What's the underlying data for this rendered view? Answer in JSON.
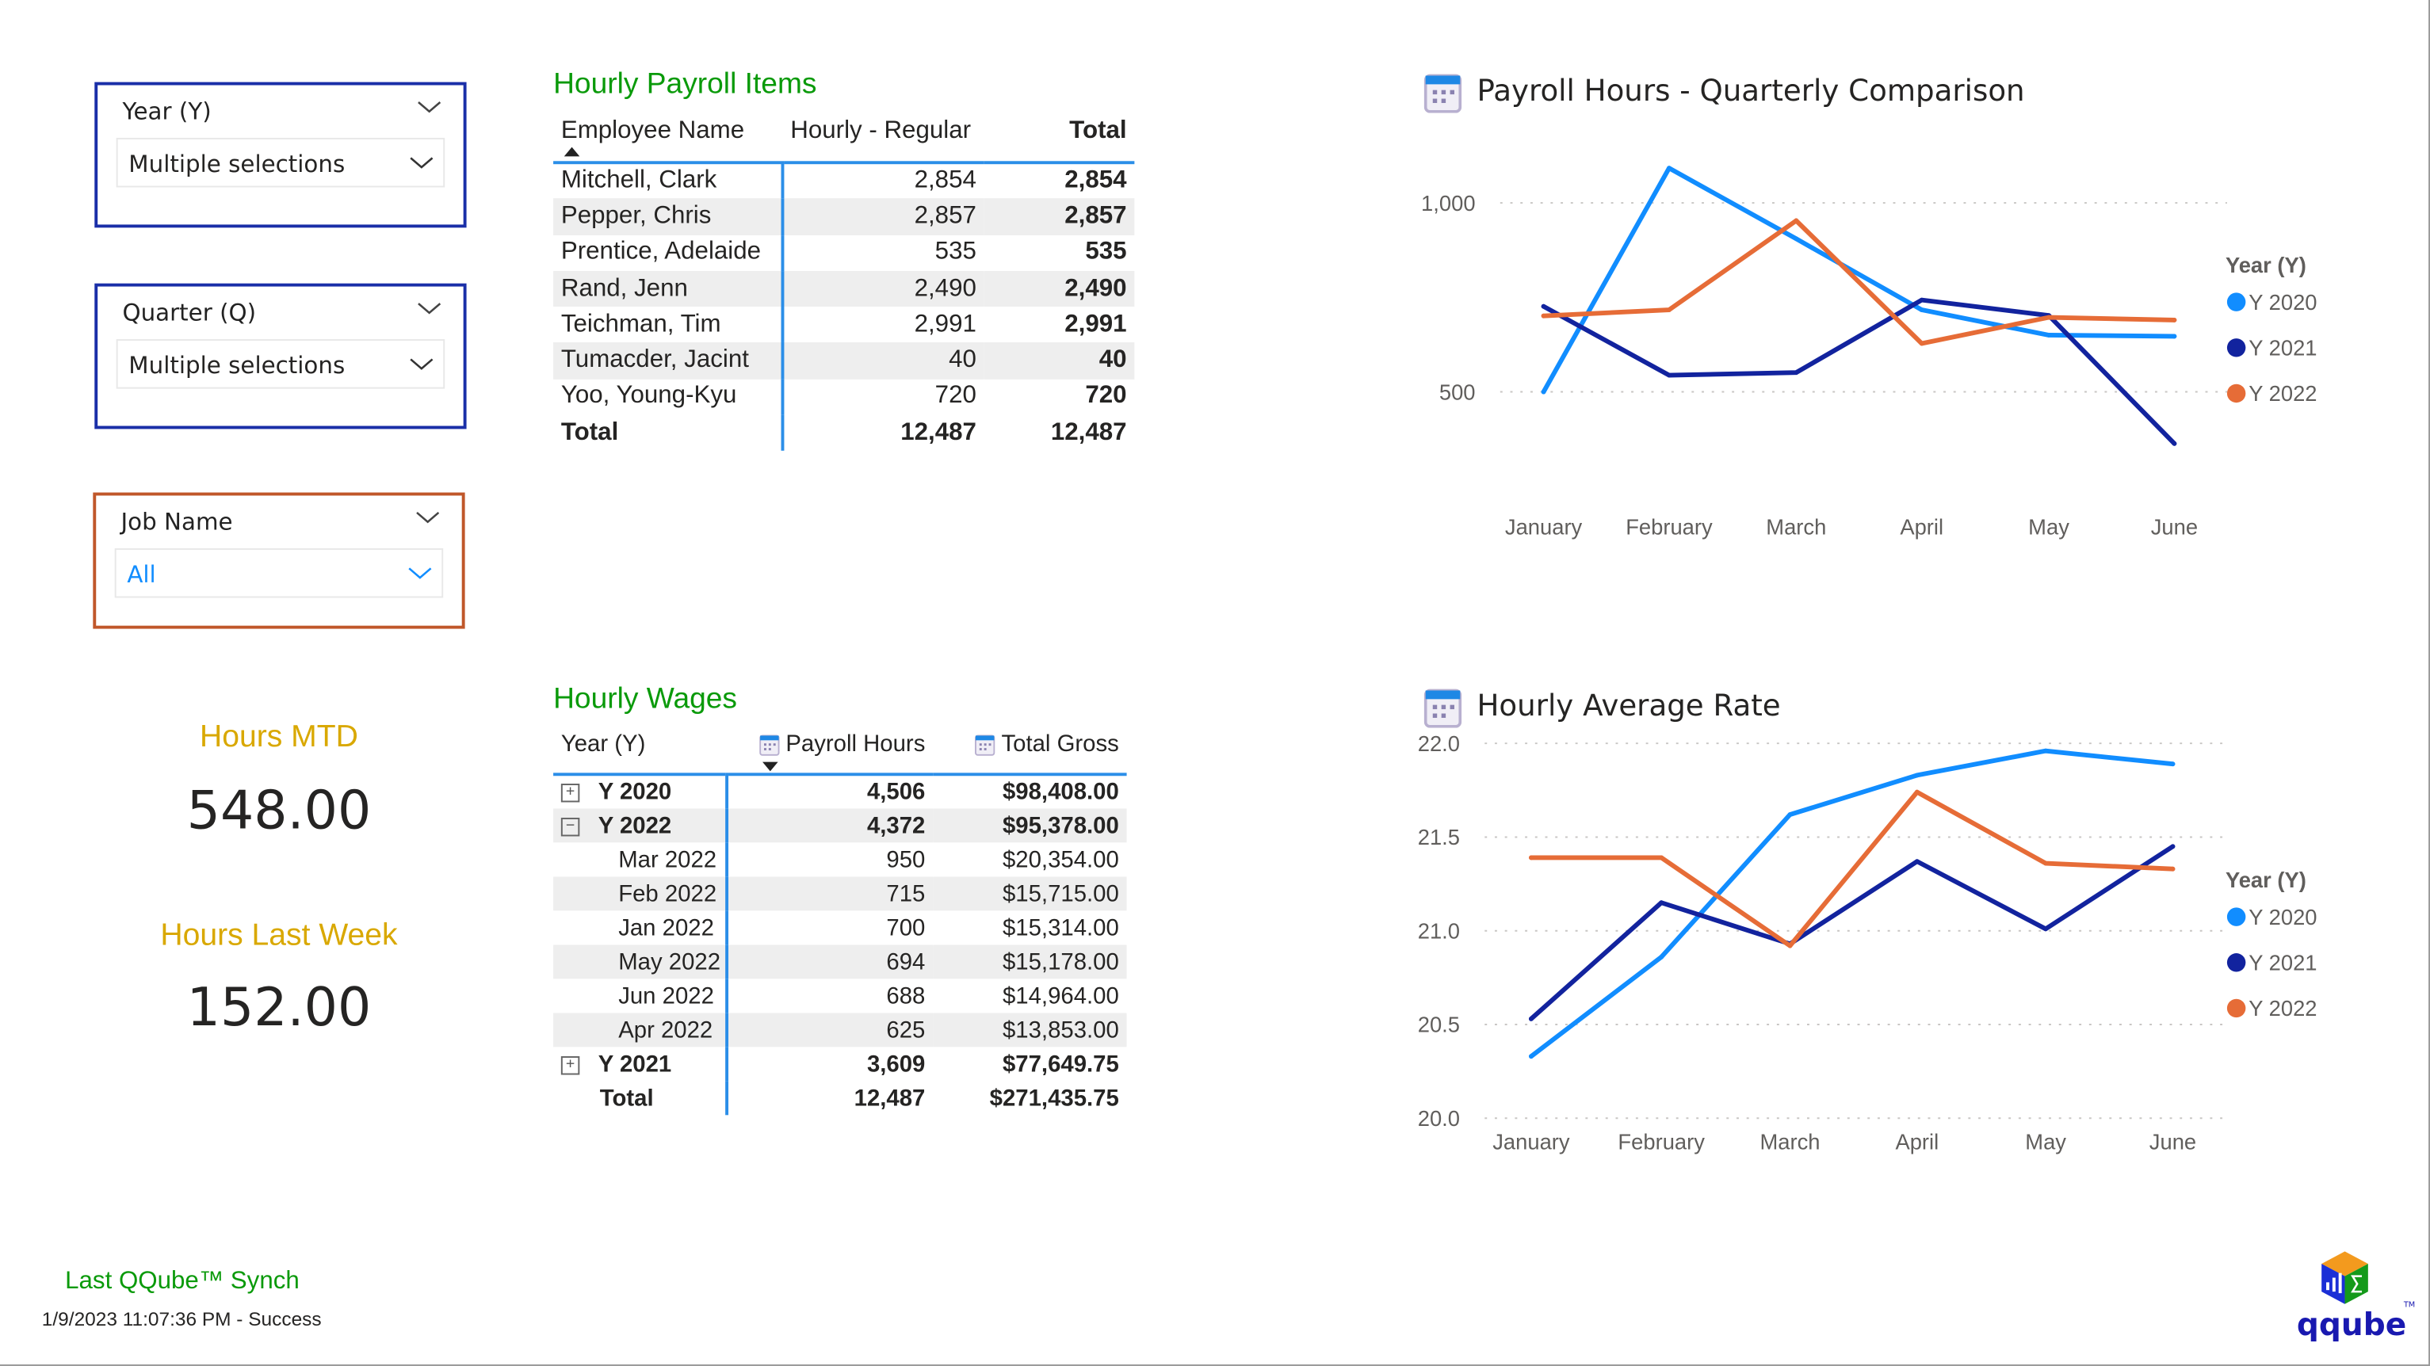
{
  "slicers": {
    "year": {
      "title": "Year (Y)",
      "value": "Multiple selections"
    },
    "quarter": {
      "title": "Quarter (Q)",
      "value": "Multiple selections"
    },
    "job": {
      "title": "Job Name",
      "value": "All"
    }
  },
  "kpis": {
    "mtd_label": "Hours MTD",
    "mtd_value": "548.00",
    "week_label": "Hours Last Week",
    "week_value": "152.00"
  },
  "sync": {
    "label": "Last QQube™ Synch",
    "status": "1/9/2023 11:07:36 PM - Success"
  },
  "logo": {
    "text": "qqube",
    "tm": "TM"
  },
  "payroll_items": {
    "title": "Hourly Payroll Items",
    "columns": [
      "Employee Name",
      "Hourly - Regular",
      "Total"
    ],
    "rows": [
      [
        "Mitchell, Clark",
        "2,854",
        "2,854"
      ],
      [
        "Pepper, Chris",
        "2,857",
        "2,857"
      ],
      [
        "Prentice, Adelaide",
        "535",
        "535"
      ],
      [
        "Rand, Jenn",
        "2,490",
        "2,490"
      ],
      [
        "Teichman, Tim",
        "2,991",
        "2,991"
      ],
      [
        "Tumacder, Jacint",
        "40",
        "40"
      ],
      [
        "Yoo, Young-Kyu",
        "720",
        "720"
      ]
    ],
    "total": [
      "Total",
      "12,487",
      "12,487"
    ]
  },
  "hourly_wages": {
    "title": "Hourly Wages",
    "columns": [
      "Year (Y)",
      "Payroll Hours",
      "Total Gross"
    ],
    "rows": [
      {
        "label": "Y 2020",
        "hours": "4,506",
        "gross": "$98,408.00",
        "level": 0,
        "expander": "+"
      },
      {
        "label": "Y 2022",
        "hours": "4,372",
        "gross": "$95,378.00",
        "level": 0,
        "expander": "−"
      },
      {
        "label": "Mar 2022",
        "hours": "950",
        "gross": "$20,354.00",
        "level": 1
      },
      {
        "label": "Feb 2022",
        "hours": "715",
        "gross": "$15,715.00",
        "level": 1
      },
      {
        "label": "Jan 2022",
        "hours": "700",
        "gross": "$15,314.00",
        "level": 1
      },
      {
        "label": "May 2022",
        "hours": "694",
        "gross": "$15,178.00",
        "level": 1
      },
      {
        "label": "Jun 2022",
        "hours": "688",
        "gross": "$14,964.00",
        "level": 1
      },
      {
        "label": "Apr 2022",
        "hours": "625",
        "gross": "$13,853.00",
        "level": 1
      },
      {
        "label": "Y 2021",
        "hours": "3,609",
        "gross": "$77,649.75",
        "level": 0,
        "expander": "+"
      }
    ],
    "total": {
      "label": "Total",
      "hours": "12,487",
      "gross": "$271,435.75"
    }
  },
  "chart_data": [
    {
      "type": "line",
      "title": "Payroll Hours - Quarterly Comparison",
      "categories": [
        "January",
        "February",
        "March",
        "April",
        "May",
        "June"
      ],
      "yticks": [
        "500",
        "1,000"
      ],
      "ytick_values": [
        500,
        1000
      ],
      "ylim": [
        230,
        1120
      ],
      "grid": true,
      "legend_title": "Year (Y)",
      "legend_position": "right",
      "series": [
        {
          "name": "Y 2020",
          "color": "#118DFF",
          "values": [
            500,
            1092,
            905,
            717,
            650,
            647
          ]
        },
        {
          "name": "Y 2021",
          "color": "#12239E",
          "values": [
            726,
            544,
            551,
            743,
            702,
            363
          ]
        },
        {
          "name": "Y 2022",
          "color": "#E66C37",
          "values": [
            701,
            717,
            953,
            628,
            697,
            690
          ]
        }
      ]
    },
    {
      "type": "line",
      "title": "Hourly Average Rate",
      "categories": [
        "January",
        "February",
        "March",
        "April",
        "May",
        "June"
      ],
      "yticks": [
        "20.0",
        "20.5",
        "21.0",
        "21.5",
        "22.0"
      ],
      "ytick_values": [
        20.0,
        20.5,
        21.0,
        21.5,
        22.0
      ],
      "ylim": [
        20.0,
        22.0
      ],
      "grid": true,
      "legend_title": "Year (Y)",
      "legend_position": "right",
      "series": [
        {
          "name": "Y 2020",
          "color": "#118DFF",
          "values": [
            20.33,
            20.86,
            21.62,
            21.83,
            21.96,
            21.89
          ]
        },
        {
          "name": "Y 2021",
          "color": "#12239E",
          "values": [
            20.53,
            21.15,
            20.93,
            21.37,
            21.01,
            21.45
          ]
        },
        {
          "name": "Y 2022",
          "color": "#E66C37",
          "values": [
            21.39,
            21.39,
            20.92,
            21.74,
            21.36,
            21.33
          ]
        }
      ]
    }
  ]
}
